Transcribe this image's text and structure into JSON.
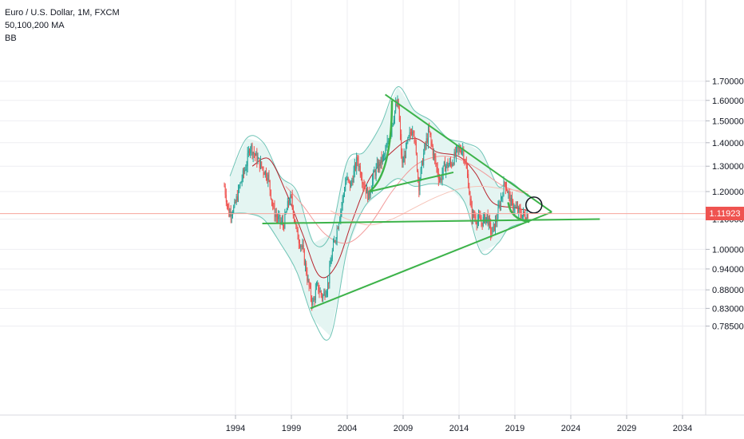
{
  "header": {
    "title": "Euro / U.S. Dollar, 1M, FXCM",
    "ma_label": "50,100,200 MA",
    "bb_label": "BB"
  },
  "colors": {
    "bull": "#26a69a",
    "bear": "#ef5350",
    "drawing": "#3db34a",
    "bb_fill": "#e4f5f2",
    "bb_line": "#6fc4b6",
    "grid": "#eeeef2",
    "axis_text": "#131722",
    "ma50": "#b7222c",
    "ma100": "#f29a9a",
    "ma200": "#f6c3b8",
    "price_line": "#f7a49c"
  },
  "price_label": "1.11923",
  "chart_data": {
    "type": "candlestick",
    "title": "Euro / U.S. Dollar, 1M, FXCM",
    "xlabel": "",
    "ylabel": "",
    "x_ticks": [
      "1994",
      "1999",
      "2004",
      "2009",
      "2014",
      "2019",
      "2024",
      "2029",
      "2034"
    ],
    "y_ticks": [
      "1.70000",
      "1.60000",
      "1.50000",
      "1.40000",
      "1.30000",
      "1.20000",
      "1.10000",
      "1.00000",
      "0.94000",
      "0.88000",
      "0.83000",
      "0.78500"
    ],
    "y_scale": "log",
    "current_price": 1.11923,
    "grid": true,
    "price_path": [
      [
        1993.0,
        1.22
      ],
      [
        1993.4,
        1.12
      ],
      [
        1993.9,
        1.14
      ],
      [
        1994.5,
        1.24
      ],
      [
        1995.0,
        1.31
      ],
      [
        1995.3,
        1.39
      ],
      [
        1995.8,
        1.34
      ],
      [
        1996.3,
        1.3
      ],
      [
        1996.9,
        1.26
      ],
      [
        1997.4,
        1.13
      ],
      [
        1997.8,
        1.1
      ],
      [
        1998.3,
        1.08
      ],
      [
        1998.8,
        1.17
      ],
      [
        1999.0,
        1.17
      ],
      [
        1999.5,
        1.05
      ],
      [
        2000.0,
        1.0
      ],
      [
        2000.5,
        0.9
      ],
      [
        2000.9,
        0.84
      ],
      [
        2001.3,
        0.89
      ],
      [
        2001.8,
        0.86
      ],
      [
        2002.3,
        0.9
      ],
      [
        2002.6,
        0.98
      ],
      [
        2003.0,
        1.05
      ],
      [
        2003.5,
        1.15
      ],
      [
        2003.9,
        1.25
      ],
      [
        2004.3,
        1.22
      ],
      [
        2004.9,
        1.33
      ],
      [
        2005.4,
        1.24
      ],
      [
        2005.9,
        1.18
      ],
      [
        2006.4,
        1.27
      ],
      [
        2006.9,
        1.31
      ],
      [
        2007.4,
        1.35
      ],
      [
        2007.9,
        1.46
      ],
      [
        2008.3,
        1.56
      ],
      [
        2008.55,
        1.59
      ],
      [
        2008.9,
        1.3
      ],
      [
        2009.4,
        1.4
      ],
      [
        2009.9,
        1.48
      ],
      [
        2010.4,
        1.22
      ],
      [
        2010.9,
        1.37
      ],
      [
        2011.3,
        1.45
      ],
      [
        2011.8,
        1.33
      ],
      [
        2012.3,
        1.24
      ],
      [
        2012.7,
        1.3
      ],
      [
        2013.3,
        1.31
      ],
      [
        2013.8,
        1.36
      ],
      [
        2014.3,
        1.38
      ],
      [
        2014.8,
        1.25
      ],
      [
        2015.1,
        1.12
      ],
      [
        2015.6,
        1.1
      ],
      [
        2016.0,
        1.09
      ],
      [
        2016.5,
        1.11
      ],
      [
        2016.9,
        1.05
      ],
      [
        2017.3,
        1.09
      ],
      [
        2017.8,
        1.18
      ],
      [
        2018.1,
        1.24
      ],
      [
        2018.6,
        1.16
      ],
      [
        2019.0,
        1.14
      ],
      [
        2019.5,
        1.12
      ],
      [
        2019.9,
        1.11
      ],
      [
        2020.2,
        1.12
      ]
    ],
    "moving_averages": [
      {
        "name": "50",
        "points": [
          [
            1995.5,
            1.3
          ],
          [
            1997.0,
            1.33
          ],
          [
            1998.5,
            1.2
          ],
          [
            2000.0,
            1.05
          ],
          [
            2001.5,
            0.92
          ],
          [
            2003.0,
            0.95
          ],
          [
            2004.5,
            1.1
          ],
          [
            2006.0,
            1.25
          ],
          [
            2008.0,
            1.36
          ],
          [
            2010.0,
            1.42
          ],
          [
            2012.0,
            1.36
          ],
          [
            2014.0,
            1.34
          ],
          [
            2015.5,
            1.27
          ],
          [
            2017.0,
            1.16
          ],
          [
            2019.0,
            1.14
          ],
          [
            2020.2,
            1.13
          ]
        ]
      },
      {
        "name": "100",
        "points": [
          [
            1998.5,
            1.22
          ],
          [
            2000.0,
            1.15
          ],
          [
            2002.0,
            1.05
          ],
          [
            2004.0,
            1.02
          ],
          [
            2006.0,
            1.08
          ],
          [
            2008.0,
            1.2
          ],
          [
            2010.0,
            1.3
          ],
          [
            2012.0,
            1.34
          ],
          [
            2014.0,
            1.33
          ],
          [
            2016.0,
            1.28
          ],
          [
            2018.0,
            1.22
          ],
          [
            2020.2,
            1.19
          ]
        ]
      },
      {
        "name": "200",
        "points": [
          [
            2002.5,
            1.13
          ],
          [
            2004.0,
            1.1
          ],
          [
            2006.0,
            1.08
          ],
          [
            2008.0,
            1.1
          ],
          [
            2010.0,
            1.14
          ],
          [
            2012.0,
            1.18
          ],
          [
            2014.0,
            1.21
          ],
          [
            2016.0,
            1.22
          ],
          [
            2018.0,
            1.21
          ],
          [
            2020.2,
            1.2
          ]
        ]
      }
    ],
    "bollinger_upper": [
      [
        1993.5,
        1.26
      ],
      [
        1995.0,
        1.42
      ],
      [
        1996.5,
        1.4
      ],
      [
        1998.0,
        1.26
      ],
      [
        1999.5,
        1.2
      ],
      [
        2001.0,
        1.02
      ],
      [
        2002.5,
        1.05
      ],
      [
        2004.0,
        1.32
      ],
      [
        2005.5,
        1.36
      ],
      [
        2007.0,
        1.48
      ],
      [
        2008.5,
        1.67
      ],
      [
        2010.0,
        1.55
      ],
      [
        2011.5,
        1.5
      ],
      [
        2013.0,
        1.42
      ],
      [
        2014.5,
        1.4
      ],
      [
        2016.0,
        1.36
      ],
      [
        2017.5,
        1.22
      ],
      [
        2018.5,
        1.24
      ],
      [
        2020.2,
        1.18
      ]
    ],
    "bollinger_lower": [
      [
        1993.5,
        1.12
      ],
      [
        1995.0,
        1.12
      ],
      [
        1996.5,
        1.1
      ],
      [
        1998.0,
        1.02
      ],
      [
        1999.5,
        0.93
      ],
      [
        2001.0,
        0.8
      ],
      [
        2002.5,
        0.76
      ],
      [
        2004.0,
        1.0
      ],
      [
        2005.5,
        1.14
      ],
      [
        2007.0,
        1.2
      ],
      [
        2008.5,
        1.25
      ],
      [
        2010.0,
        1.22
      ],
      [
        2011.5,
        1.23
      ],
      [
        2013.0,
        1.22
      ],
      [
        2014.5,
        1.16
      ],
      [
        2016.0,
        0.99
      ],
      [
        2017.5,
        1.02
      ],
      [
        2018.5,
        1.07
      ],
      [
        2020.2,
        1.09
      ]
    ],
    "drawings": [
      {
        "name": "upper-triangle-line",
        "kind": "line",
        "from": [
          2007.4,
          1.63
        ],
        "to": [
          2022.3,
          1.125
        ]
      },
      {
        "name": "lower-triangle-line",
        "kind": "line",
        "from": [
          2000.7,
          0.83
        ],
        "to": [
          2022.3,
          1.125
        ]
      },
      {
        "name": "horizontal-support-line",
        "kind": "line",
        "from": [
          1996.4,
          1.085
        ],
        "to": [
          2026.6,
          1.1
        ]
      },
      {
        "name": "inner-support-line",
        "kind": "line",
        "from": [
          2006.0,
          1.2
        ],
        "to": [
          2013.5,
          1.275
        ]
      },
      {
        "name": "parabolic-curve-2008",
        "kind": "curve",
        "from": [
          2006.0,
          1.2
        ],
        "control": [
          2008.0,
          1.27
        ],
        "to": [
          2008.0,
          1.6
        ]
      },
      {
        "name": "parabolic-curve-2019",
        "kind": "curve",
        "from": [
          2018.4,
          1.16
        ],
        "control": [
          2018.6,
          1.1
        ],
        "to": [
          2020.3,
          1.09
        ]
      },
      {
        "name": "target-circle",
        "kind": "circle",
        "at": [
          2020.7,
          1.15
        ]
      }
    ]
  }
}
